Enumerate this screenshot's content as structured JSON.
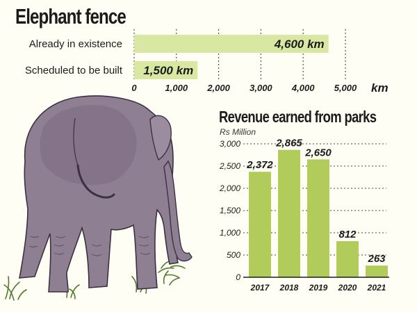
{
  "colors": {
    "bar": "#b2cc5c",
    "bar_light": "#d8e8a2",
    "grid": "#444444",
    "text": "#1b1b1b",
    "background": "#fffef4",
    "elephant": "#8f7f92"
  },
  "elephant_illustration": "elephant-rear-view-illustration",
  "chart_data": [
    {
      "type": "bar",
      "orientation": "horizontal",
      "title": "Elephant fence",
      "categories": [
        "Already in existence",
        "Scheduled to be built"
      ],
      "values": [
        4600,
        1500
      ],
      "value_labels": [
        "4,600 km",
        "1,500 km"
      ],
      "xlabel": "km",
      "xlim": [
        0,
        5000
      ],
      "xticks": [
        "0",
        "1,000",
        "2,000",
        "3,000",
        "4,000",
        "5,000"
      ],
      "grid": true
    },
    {
      "type": "bar",
      "title": "Revenue earned from parks",
      "ylabel": "Rs Million",
      "categories": [
        "2017",
        "2018",
        "2019",
        "2020",
        "2021"
      ],
      "values": [
        2372,
        2865,
        2650,
        812,
        263
      ],
      "value_labels": [
        "2,372",
        "2,865",
        "2,650",
        "812",
        "263"
      ],
      "ylim": [
        0,
        3000
      ],
      "yticks": [
        "0",
        "500",
        "1,000",
        "1,500",
        "2,000",
        "2,500",
        "3,000"
      ],
      "grid": true
    }
  ]
}
